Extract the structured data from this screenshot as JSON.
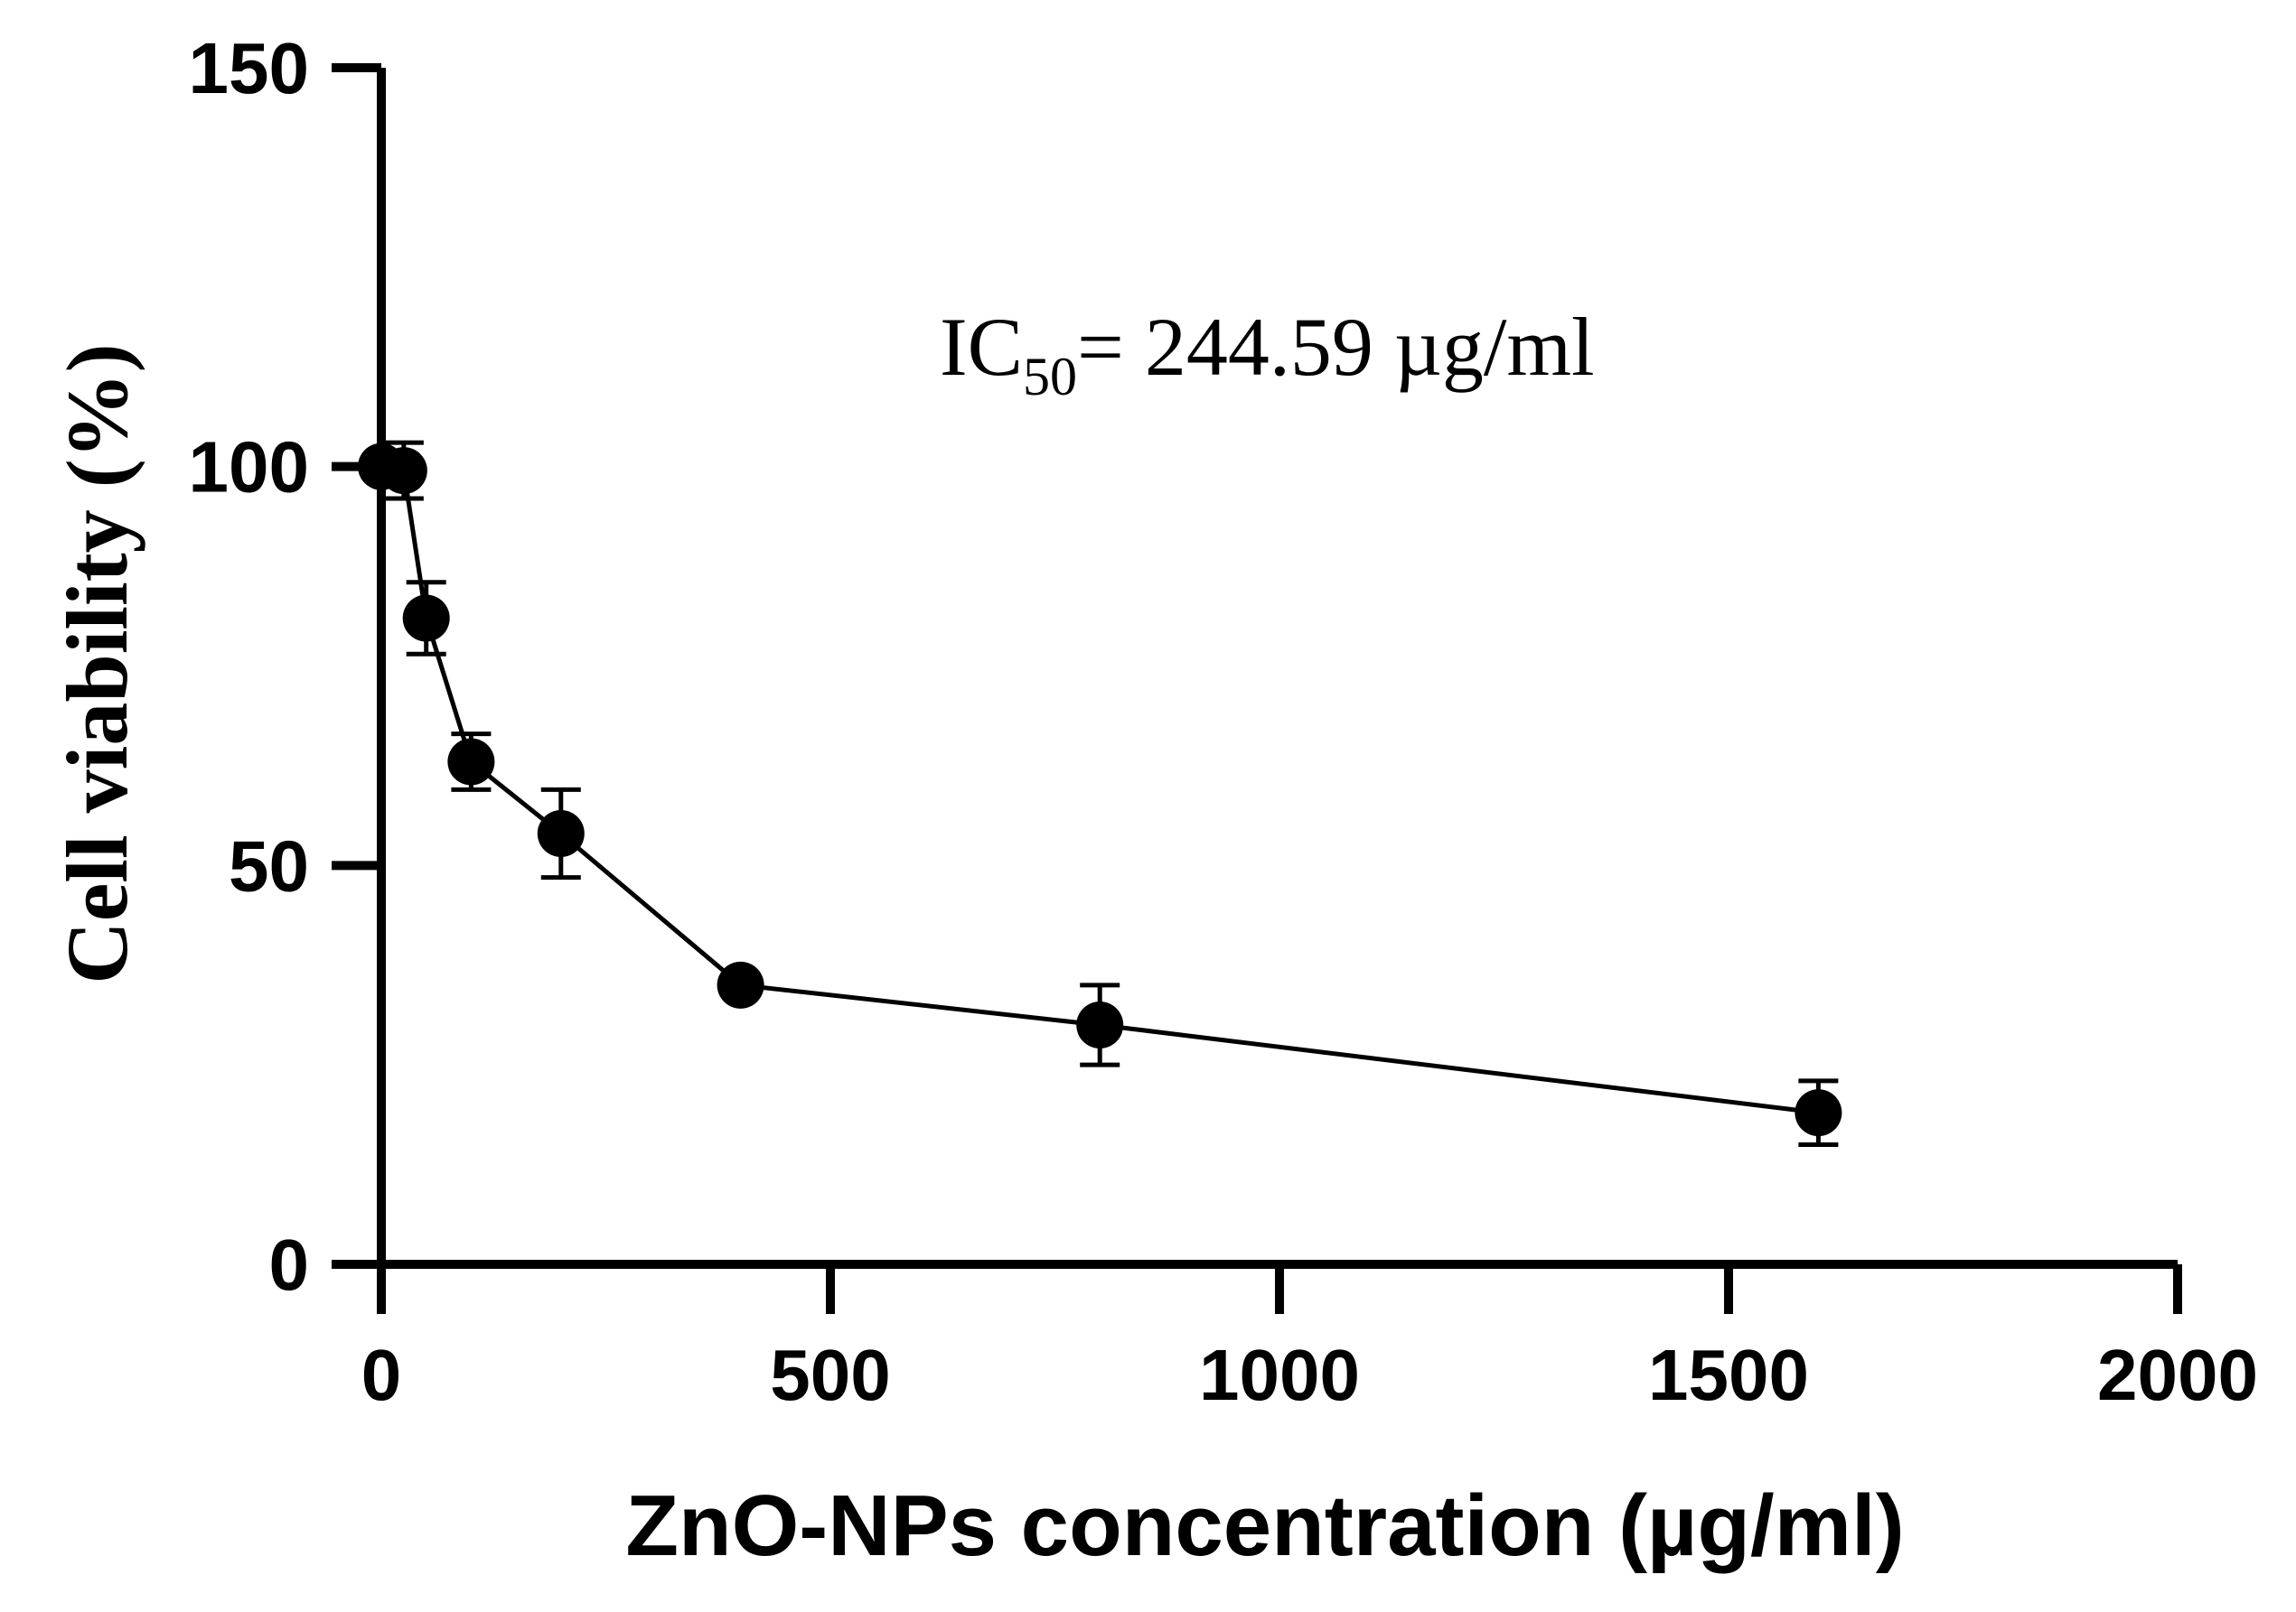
{
  "chart_data": {
    "type": "scatter",
    "xlabel": "ZnO-NPs concentration (µg/ml)",
    "ylabel": "Cell viability (%)",
    "xlim": [
      0,
      2000
    ],
    "ylim": [
      0,
      150
    ],
    "xticks": [
      0,
      500,
      1000,
      1500,
      2000
    ],
    "yticks": [
      0,
      50,
      100,
      150
    ],
    "grid": false,
    "connected": true,
    "marker_color": "#000000",
    "annotation": {
      "prefix": "IC",
      "subscript": "50",
      "suffix": "= 244.59 µg/ml"
    },
    "series": [
      {
        "x": [
          0,
          25,
          50,
          100,
          200,
          400,
          800,
          1600
        ],
        "y": [
          100,
          99.5,
          81,
          63,
          54,
          35,
          30,
          19
        ],
        "error": [
          0,
          3.5,
          4.5,
          3.5,
          5.5,
          0,
          5,
          4
        ]
      }
    ]
  }
}
